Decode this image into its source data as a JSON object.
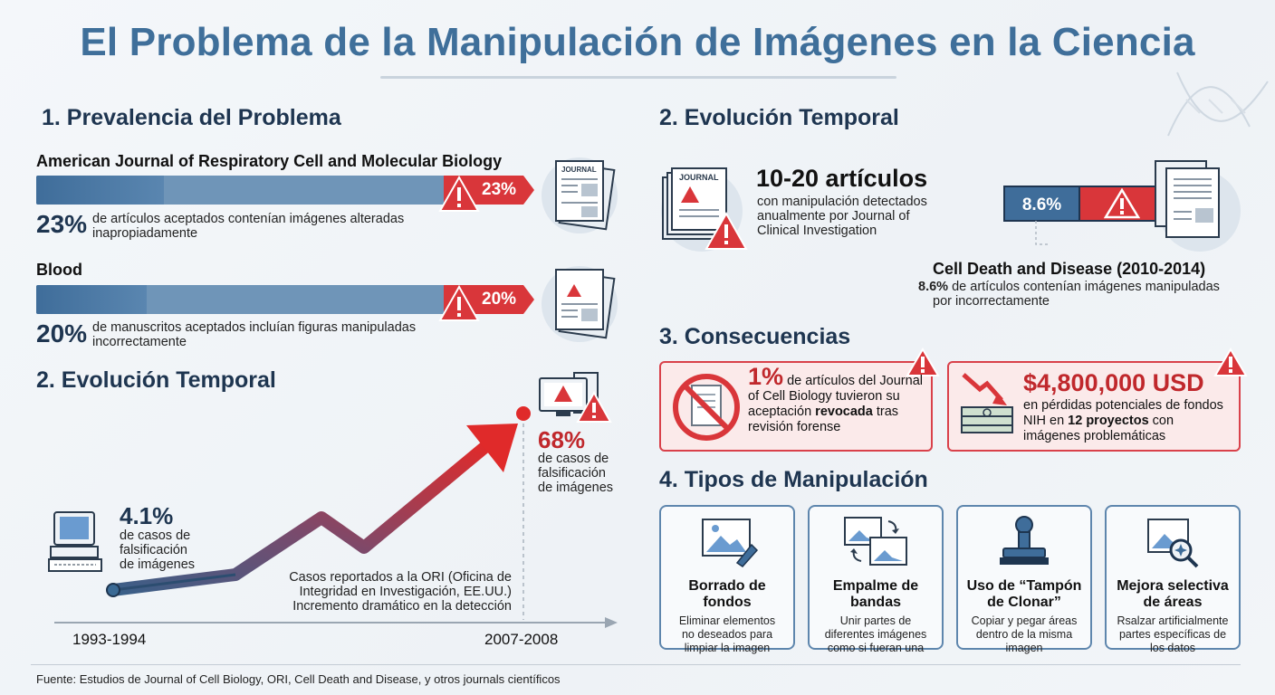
{
  "title": "El Problema de la Manipulación de Imágenes en la Ciencia",
  "prevalence": {
    "heading": "1. Prevalencia del Problema",
    "items": [
      {
        "journal": "American Journal of Respiratory Cell and Molecular Biology",
        "pct_label": "23%",
        "value": 23,
        "desc_line1": "de artículos aceptados contenían imágenes alteradas",
        "desc_line2": "inapropiadamente",
        "doc_label": "JOURNAL"
      },
      {
        "journal": "Blood",
        "pct_label": "20%",
        "value": 20,
        "desc_line1": "de manuscritos aceptados incluían figuras manipuladas",
        "desc_line2": "incorrectamente"
      }
    ]
  },
  "evolution_left": {
    "heading": "2. Evolución Temporal",
    "start": {
      "pct": "4.1%",
      "line1": "de casos de",
      "line2": "falsificación",
      "line3": "de imágenes",
      "year": "1993-1994"
    },
    "end": {
      "pct": "68%",
      "line1": "de casos de",
      "line2": "falsificación",
      "line3": "de imágenes",
      "year": "2007-2008"
    },
    "caption1": "Casos reportados a la ORI (Oficina de",
    "caption2": "Integridad en Investigación, EE.UU.)",
    "caption3": "Incremento dramático en la detección"
  },
  "evolution_right": {
    "heading": "2. Evolución Temporal",
    "count": "10-20 artículos",
    "count_line1": "con manipulación detectados",
    "count_line2": "anualmente por Journal of",
    "count_line3": "Clinical Investigation",
    "doc_label": "JOURNAL",
    "bar_pct": "8.6%",
    "cdd_title": "Cell Death and Disease (2010-2014)",
    "cdd_pct": "8.6%",
    "cdd_line1": "de artículos contenían imágenes manipuladas",
    "cdd_line2": "por incorrectamente"
  },
  "consequences": {
    "heading": "3. Consecuencias",
    "left": {
      "pct": "1%",
      "line1": "de artículos del Journal",
      "line2": "of Cell Biology tuvieron su",
      "line3a": "aceptación ",
      "line3b": "revocada",
      "line3c": " tras",
      "line4": "revisión forense"
    },
    "right": {
      "amount": "$4,800,000 USD",
      "line1": "en pérdidas potenciales de fondos",
      "line2a": "NIH en ",
      "line2b": "12 proyectos",
      "line2c": " con",
      "line3": "imágenes problemáticas"
    }
  },
  "types": {
    "heading": "4. Tipos de Manipulación",
    "items": [
      {
        "title1": "Borrado de",
        "title2": "fondos",
        "d1": "Eliminar elementos",
        "d2": "no deseados para",
        "d3": "limpiar la imagen"
      },
      {
        "title1": "Empalme de",
        "title2": "bandas",
        "d1": "Unir partes de",
        "d2": "diferentes imágenes",
        "d3": "como si fueran una"
      },
      {
        "title1": "Uso de “Tampón",
        "title2": "de Clonar”",
        "d1": "Copiar y pegar áreas",
        "d2": "dentro de la misma",
        "d3": "imagen"
      },
      {
        "title1": "Mejora selectiva",
        "title2": "de áreas",
        "d1": "Rsalzar artificialmente",
        "d2": "partes específicas de",
        "d3": "los datos"
      }
    ]
  },
  "footer": "Fuente: Estudios de Journal of Cell Biology, ORI, Cell Death and Disease, y otros journals científicos",
  "colors": {
    "accent_blue": "#3f6f9a",
    "alert_red": "#d9363a",
    "dark_navy": "#1e3550"
  }
}
